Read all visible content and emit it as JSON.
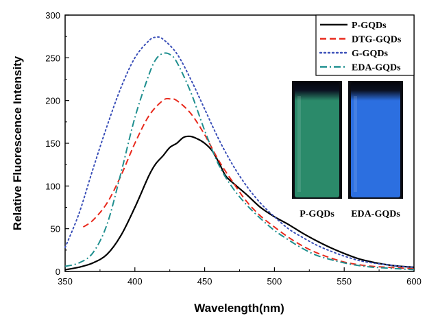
{
  "chart_data": {
    "type": "line",
    "title": "",
    "xlabel": "Wavelength(nm)",
    "ylabel": "Relative Fluorescence Intensity",
    "xlim": [
      350,
      600
    ],
    "ylim": [
      0,
      300
    ],
    "xticks": [
      350,
      400,
      450,
      500,
      550,
      600
    ],
    "yticks": [
      0,
      50,
      100,
      150,
      200,
      250,
      300
    ],
    "grid": false,
    "legend_position": "top-right",
    "series": [
      {
        "name": "P-GQDs",
        "color": "#000000",
        "style": "solid",
        "x": [
          350,
          360,
          370,
          380,
          390,
          400,
          410,
          415,
          420,
          425,
          430,
          435,
          440,
          445,
          450,
          455,
          460,
          465,
          470,
          480,
          490,
          500,
          510,
          520,
          530,
          540,
          550,
          560,
          570,
          580,
          590,
          600
        ],
        "y": [
          2,
          5,
          10,
          20,
          42,
          75,
          112,
          126,
          135,
          145,
          150,
          157,
          158,
          155,
          150,
          142,
          128,
          112,
          104,
          90,
          75,
          64,
          55,
          45,
          36,
          28,
          21,
          15,
          11,
          8,
          6,
          5
        ]
      },
      {
        "name": "DTG-GQDs",
        "color": "#e8291c",
        "style": "dashed",
        "x": [
          363,
          370,
          380,
          390,
          400,
          410,
          420,
          425,
          430,
          440,
          450,
          460,
          470,
          480,
          490,
          500,
          510,
          520,
          530,
          540,
          550,
          560,
          570,
          580,
          590,
          600
        ],
        "y": [
          52,
          60,
          80,
          112,
          150,
          182,
          200,
          202,
          200,
          185,
          160,
          130,
          105,
          82,
          65,
          52,
          40,
          30,
          22,
          16,
          11,
          8,
          6,
          5,
          4,
          3
        ]
      },
      {
        "name": "G-GQDs",
        "color": "#3a4fb8",
        "style": "dotted",
        "x": [
          350,
          360,
          370,
          380,
          390,
          400,
          410,
          415,
          420,
          430,
          440,
          450,
          460,
          470,
          480,
          490,
          500,
          510,
          520,
          530,
          540,
          550,
          560,
          570,
          580,
          590,
          600
        ],
        "y": [
          28,
          68,
          120,
          170,
          215,
          250,
          270,
          274,
          272,
          255,
          225,
          190,
          155,
          125,
          100,
          80,
          64,
          50,
          40,
          31,
          24,
          18,
          13,
          10,
          8,
          6,
          5
        ]
      },
      {
        "name": "EDA-GQDs",
        "color": "#1f8f8f",
        "style": "dashdot",
        "x": [
          350,
          360,
          370,
          380,
          390,
          400,
          410,
          415,
          420,
          425,
          430,
          440,
          450,
          460,
          470,
          480,
          490,
          500,
          510,
          520,
          530,
          540,
          550,
          560,
          570,
          580,
          590,
          600
        ],
        "y": [
          6,
          10,
          22,
          55,
          115,
          180,
          230,
          248,
          255,
          254,
          245,
          210,
          165,
          125,
          98,
          78,
          62,
          48,
          37,
          27,
          19,
          14,
          10,
          7,
          5,
          4,
          3,
          2
        ]
      }
    ],
    "insets": [
      {
        "label": "P-GQDs",
        "color": "#2b8a6a"
      },
      {
        "label": "EDA-GQDs",
        "color": "#2c6fe0"
      }
    ]
  }
}
